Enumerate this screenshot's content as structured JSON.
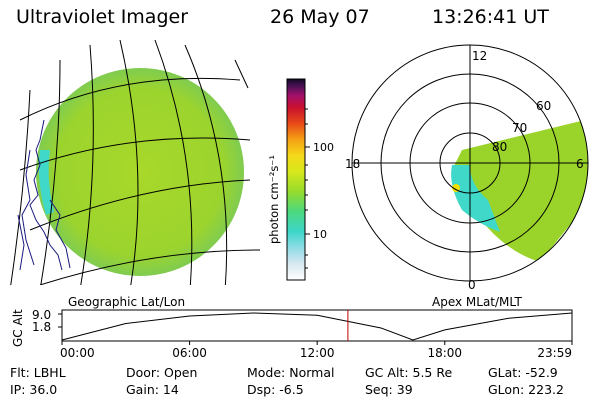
{
  "header": {
    "title": "Ultraviolet Imager",
    "date": "26 May 07",
    "time": "13:26:41 UT"
  },
  "colorbar": {
    "label": "photon cm⁻²s⁻¹",
    "ticks": [
      "100",
      "10"
    ],
    "scale": "log"
  },
  "polar_plot": {
    "mlt_labels": [
      "12",
      "18",
      "6",
      "0"
    ],
    "lat_labels": [
      "60",
      "70",
      "80"
    ]
  },
  "left_panel_caption": "Geographic Lat/Lon",
  "right_panel_caption": "Apex MLat/MLT",
  "chart_data": {
    "type": "line",
    "ylabel": "GC Alt",
    "yticks": [
      "9.0",
      "1.8"
    ],
    "xticks": [
      "00:00",
      "06:00",
      "12:00",
      "18:00",
      "23:59"
    ],
    "x": [
      "00:00",
      "03:00",
      "06:00",
      "09:00",
      "12:00",
      "15:00",
      "16:30",
      "18:00",
      "21:00",
      "23:59"
    ],
    "values": [
      1.8,
      6.2,
      8.2,
      9.0,
      8.4,
      5.0,
      1.8,
      4.5,
      7.6,
      9.0
    ],
    "ylim": [
      1.8,
      9.0
    ],
    "current_time": "13:26:41"
  },
  "info": {
    "flt": "Flt: LBHL",
    "ip": "IP: 36.0",
    "door": "Door: Open",
    "gain": "Gain: 14",
    "mode": "Mode: Normal",
    "dsp": "Dsp:   -6.5",
    "gcalt": "GC Alt: 5.5 Re",
    "seq": "Seq: 39",
    "glat": "GLat: -52.9",
    "glon": "GLon: 223.2"
  },
  "colors": {
    "aurora_green": "#9ad42a",
    "aurora_cyan": "#40d8c8",
    "cursor_red": "#c00000"
  }
}
